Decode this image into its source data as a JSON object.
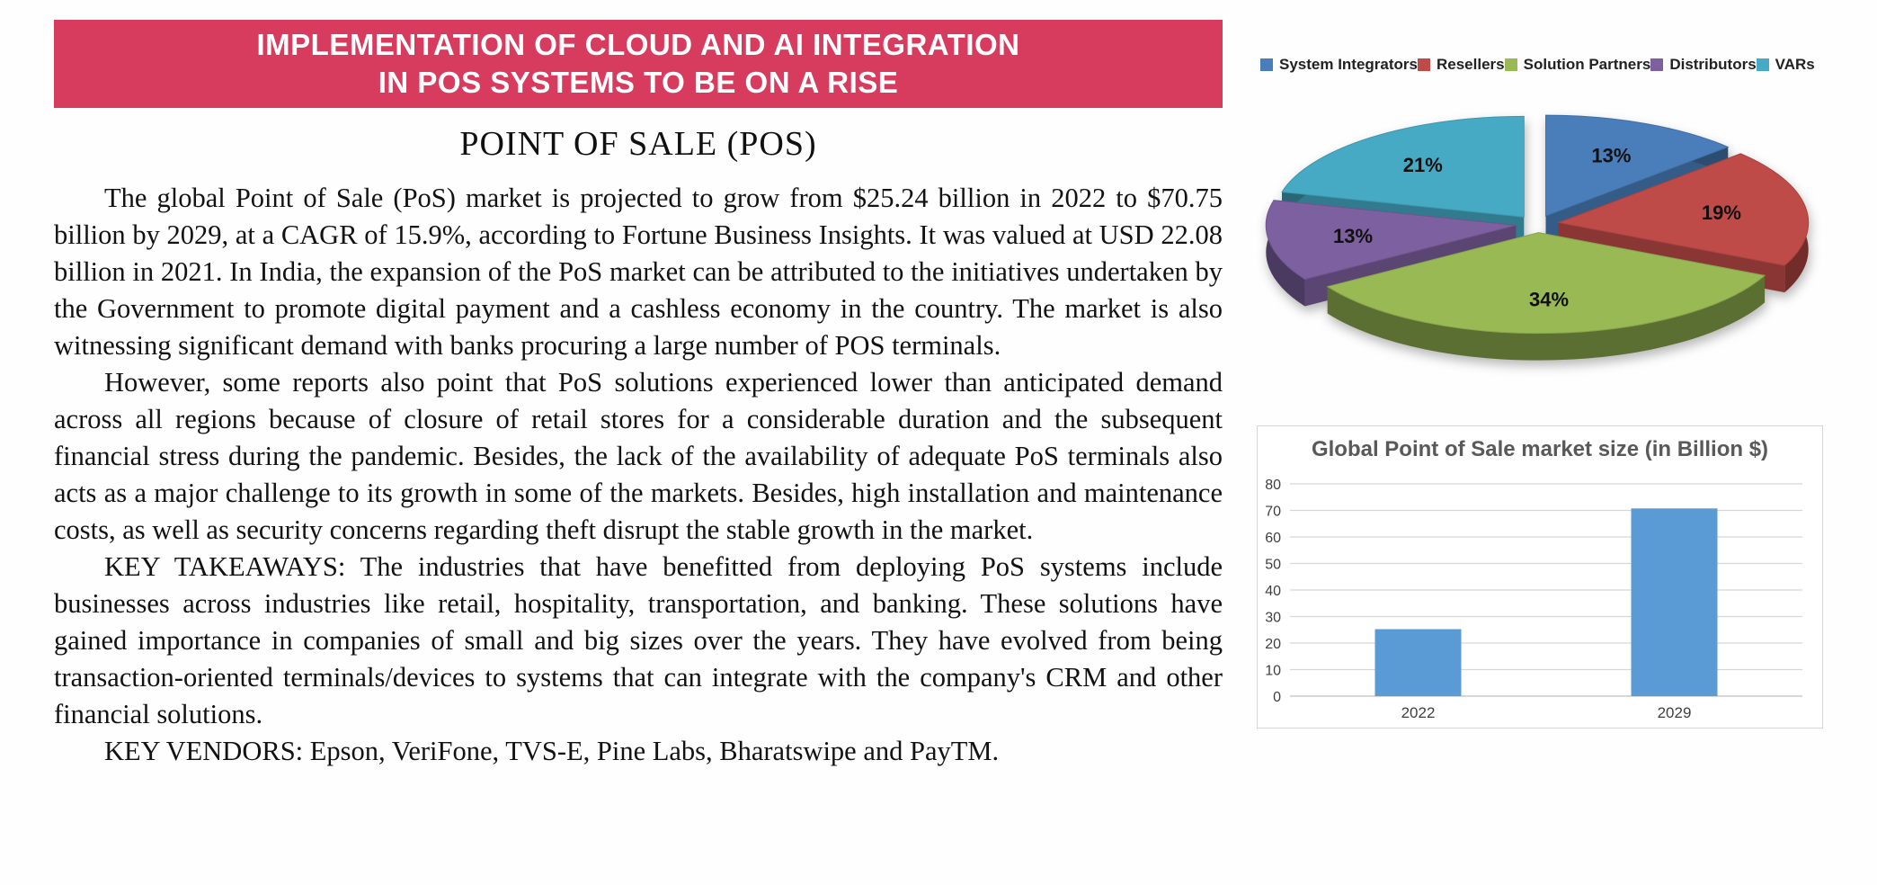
{
  "banner": {
    "line1": "IMPLEMENTATION OF CLOUD AND AI INTEGRATION",
    "line2": "IN POS SYSTEMS TO BE ON A RISE",
    "bg_color": "#D73C5F",
    "text_color": "#FFFFFF"
  },
  "article": {
    "heading": "POINT OF SALE (POS)",
    "paragraphs": [
      "The global Point of Sale (PoS) market is projected to grow from $25.24 billion in 2022 to $70.75 billion by 2029, at a CAGR of 15.9%, according to Fortune Business Insights. It was valued at USD 22.08 billion in 2021. In India, the expansion of the PoS market can be attributed to the initiatives undertaken by the Government to promote digital payment and a cashless economy in the country. The market is also witnessing significant demand with banks procuring a large number of POS terminals.",
      "However, some reports also point that PoS solutions experienced lower than anticipated demand across all regions because of closure of retail stores for a considerable duration and the subsequent financial stress during the pandemic. Besides, the lack of the availability of adequate PoS terminals also acts as a major challenge to its growth in some of the markets. Besides, high installation and maintenance costs, as well as security concerns regarding theft disrupt the stable growth in the market.",
      "KEY TAKEAWAYS: The industries that have benefitted from deploying PoS systems include businesses across industries like retail, hospitality, transportation, and banking. These solutions have gained importance in companies of small and big sizes over the years. They have evolved from being transaction-oriented terminals/devices to systems that can integrate with the company's CRM and other financial solutions.",
      "KEY VENDORS: Epson, VeriFone, TVS-E, Pine Labs, Bharatswipe and PayTM."
    ]
  },
  "chart_data": [
    {
      "type": "pie",
      "style": "3d-exploded",
      "legend_position": "top",
      "labels": [
        "System Integrators",
        "Resellers",
        "Solution Partners",
        "Distributors",
        "VARs"
      ],
      "values": [
        13,
        19,
        34,
        13,
        21
      ],
      "unit": "%",
      "colors": [
        "#4A7EBB",
        "#BE4B48",
        "#98B954",
        "#7D60A0",
        "#46AAC5"
      ],
      "label_color": "#111111"
    },
    {
      "type": "bar",
      "title": "Global Point of Sale market size (in Billion $)",
      "categories": [
        "2022",
        "2029"
      ],
      "values": [
        25.24,
        70.75
      ],
      "ylabel": "",
      "xlabel": "",
      "ylim": [
        0,
        80
      ],
      "ytick_step": 10,
      "bar_color": "#5B9BD5",
      "grid": true,
      "grid_color": "#D6D6D6",
      "axis_text_color": "#3F3F3F",
      "title_color": "#595959",
      "legend_position": "none"
    }
  ]
}
